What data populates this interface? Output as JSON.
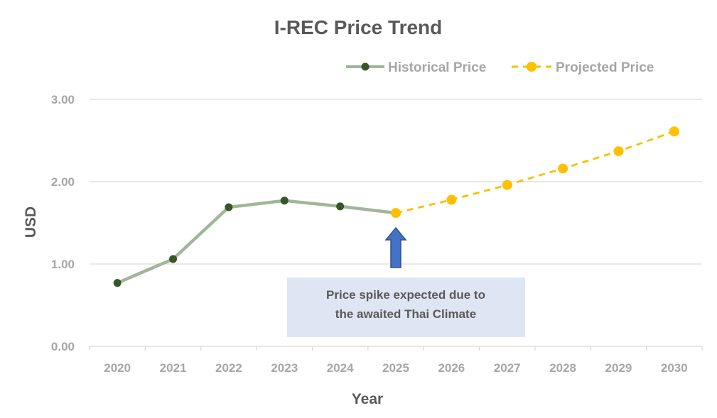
{
  "chart_data": {
    "type": "line",
    "title": "I-REC Price Trend",
    "xlabel": "Year",
    "ylabel": "USD",
    "categories": [
      "2020",
      "2021",
      "2022",
      "2023",
      "2024",
      "2025",
      "2026",
      "2027",
      "2028",
      "2029",
      "2030"
    ],
    "ylim": [
      0,
      3
    ],
    "yticks": [
      "0.00",
      "1.00",
      "2.00",
      "3.00"
    ],
    "grid": true,
    "legend_position": "top-right",
    "series": [
      {
        "name": "Historical Price",
        "style": "solid",
        "line_color": "#a1b59b",
        "marker_color": "#375623",
        "x": [
          "2020",
          "2021",
          "2022",
          "2023",
          "2024",
          "2025"
        ],
        "values": [
          0.77,
          1.06,
          1.69,
          1.77,
          1.7,
          1.62
        ]
      },
      {
        "name": "Projected Price",
        "style": "dashed",
        "line_color": "#f2c200",
        "marker_color": "#ffc000",
        "x": [
          "2025",
          "2026",
          "2027",
          "2028",
          "2029",
          "2030"
        ],
        "values": [
          1.62,
          1.78,
          1.96,
          2.16,
          2.37,
          2.61
        ]
      }
    ],
    "annotation": {
      "lines": [
        "Price spike expected due to",
        "the awaited Thai Climate"
      ],
      "points_to": "2025",
      "arrow_color": "#4472c4",
      "box_color": "#dfe6f3"
    }
  }
}
